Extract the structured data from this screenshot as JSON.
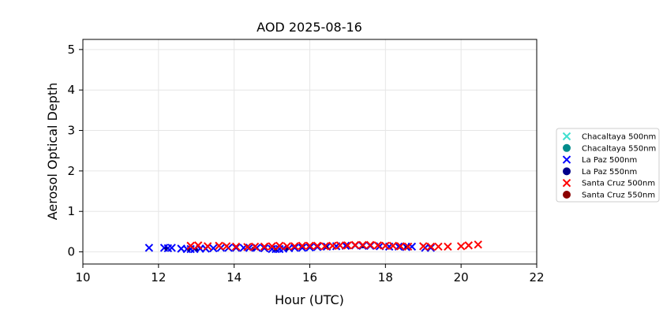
{
  "chart_data": {
    "type": "scatter",
    "title": "AOD 2025-08-16",
    "xlabel": "Hour (UTC)",
    "ylabel": "Aerosol Optical Depth",
    "xlim": [
      10,
      22
    ],
    "ylim": [
      -0.3,
      5.25
    ],
    "xticks": [
      10,
      12,
      14,
      16,
      18,
      20,
      22
    ],
    "yticks": [
      0,
      1,
      2,
      3,
      4,
      5
    ],
    "grid": true,
    "legend_position": "outside-right",
    "series": [
      {
        "name": "Chacaltaya 500nm",
        "marker": "x",
        "color": "#40e0d0",
        "x": [],
        "y": []
      },
      {
        "name": "Chacaltaya 550nm",
        "marker": "o",
        "color": "#008b8b",
        "x": [],
        "y": []
      },
      {
        "name": "La Paz 500nm",
        "marker": "x",
        "color": "#0000ff",
        "x": [
          11.75,
          12.15,
          12.25,
          12.35,
          12.6,
          12.75,
          12.85,
          12.95,
          13.1,
          13.25,
          13.45,
          13.65,
          13.85,
          14.05,
          14.25,
          14.4,
          14.6,
          14.8,
          15.0,
          15.1,
          15.2,
          15.3,
          15.45,
          15.6,
          15.8,
          16.0,
          16.2,
          16.45,
          16.7,
          16.95,
          17.2,
          17.4,
          17.6,
          17.85,
          18.1,
          18.35,
          18.55,
          18.7,
          19.05,
          19.2
        ],
        "y": [
          0.1,
          0.1,
          0.09,
          0.1,
          0.08,
          0.07,
          0.07,
          0.07,
          0.08,
          0.08,
          0.09,
          0.1,
          0.1,
          0.1,
          0.1,
          0.1,
          0.1,
          0.09,
          0.07,
          0.07,
          0.07,
          0.08,
          0.09,
          0.1,
          0.1,
          0.11,
          0.12,
          0.13,
          0.14,
          0.15,
          0.16,
          0.15,
          0.15,
          0.14,
          0.13,
          0.13,
          0.12,
          0.13,
          0.1,
          0.1
        ]
      },
      {
        "name": "La Paz 550nm",
        "marker": "o",
        "color": "#00008b",
        "x": [
          12.2,
          12.8,
          13.0,
          14.5,
          15.1,
          15.4,
          16.45,
          17.4,
          18.55
        ],
        "y": [
          0.08,
          0.06,
          0.06,
          0.08,
          0.06,
          0.07,
          0.11,
          0.13,
          0.11
        ]
      },
      {
        "name": "Santa Cruz 500nm",
        "marker": "x",
        "color": "#ff0000",
        "x": [
          12.85,
          13.05,
          13.3,
          13.6,
          13.8,
          14.05,
          14.35,
          14.55,
          14.8,
          15.0,
          15.2,
          15.4,
          15.6,
          15.8,
          16.0,
          16.2,
          16.4,
          16.6,
          16.8,
          17.0,
          17.2,
          17.4,
          17.6,
          17.8,
          18.0,
          18.2,
          18.4,
          18.6,
          19.0,
          19.2,
          19.4,
          19.65,
          20.0,
          20.2,
          20.45
        ],
        "y": [
          0.15,
          0.16,
          0.14,
          0.15,
          0.14,
          0.13,
          0.12,
          0.13,
          0.13,
          0.14,
          0.15,
          0.14,
          0.14,
          0.15,
          0.15,
          0.15,
          0.14,
          0.15,
          0.16,
          0.16,
          0.17,
          0.17,
          0.17,
          0.16,
          0.15,
          0.15,
          0.14,
          0.13,
          0.14,
          0.13,
          0.13,
          0.13,
          0.14,
          0.16,
          0.18
        ]
      },
      {
        "name": "Santa Cruz 550nm",
        "marker": "o",
        "color": "#8b0000",
        "x": [],
        "y": []
      }
    ]
  }
}
